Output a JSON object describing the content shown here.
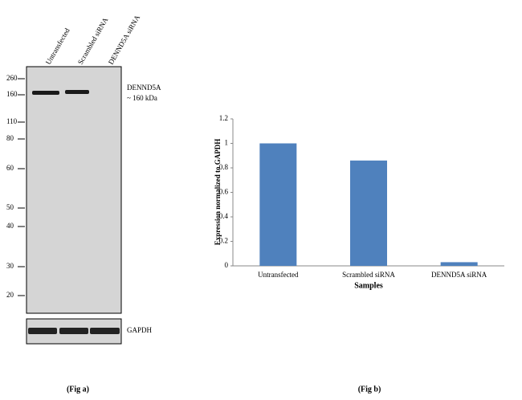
{
  "blot": {
    "lanes": [
      "Untransfected",
      "Scrambled siRNA",
      "DENND5A siRNA"
    ],
    "markers": [
      "260",
      "160",
      "110",
      "80",
      "60",
      "50",
      "40",
      "30",
      "20"
    ],
    "band_label": "DENND5A",
    "band_size": "~ 160 kDa",
    "loading_label": "GAPDH",
    "caption": "(Fig a)"
  },
  "chart_data": {
    "type": "bar",
    "caption": "(Fig b)",
    "x_label": "Samples",
    "y_label": "Expression normalized to GAPDH",
    "categories": [
      "Untransfected",
      "Scrambled siRNA",
      "DENND5A  siRNA"
    ],
    "values": [
      1,
      0.86,
      0.03
    ],
    "color": "#4f81bd",
    "ylim": [
      0,
      1.2
    ],
    "yticks": [
      0,
      0.2,
      0.4,
      0.6,
      0.8,
      1,
      1.2
    ]
  }
}
